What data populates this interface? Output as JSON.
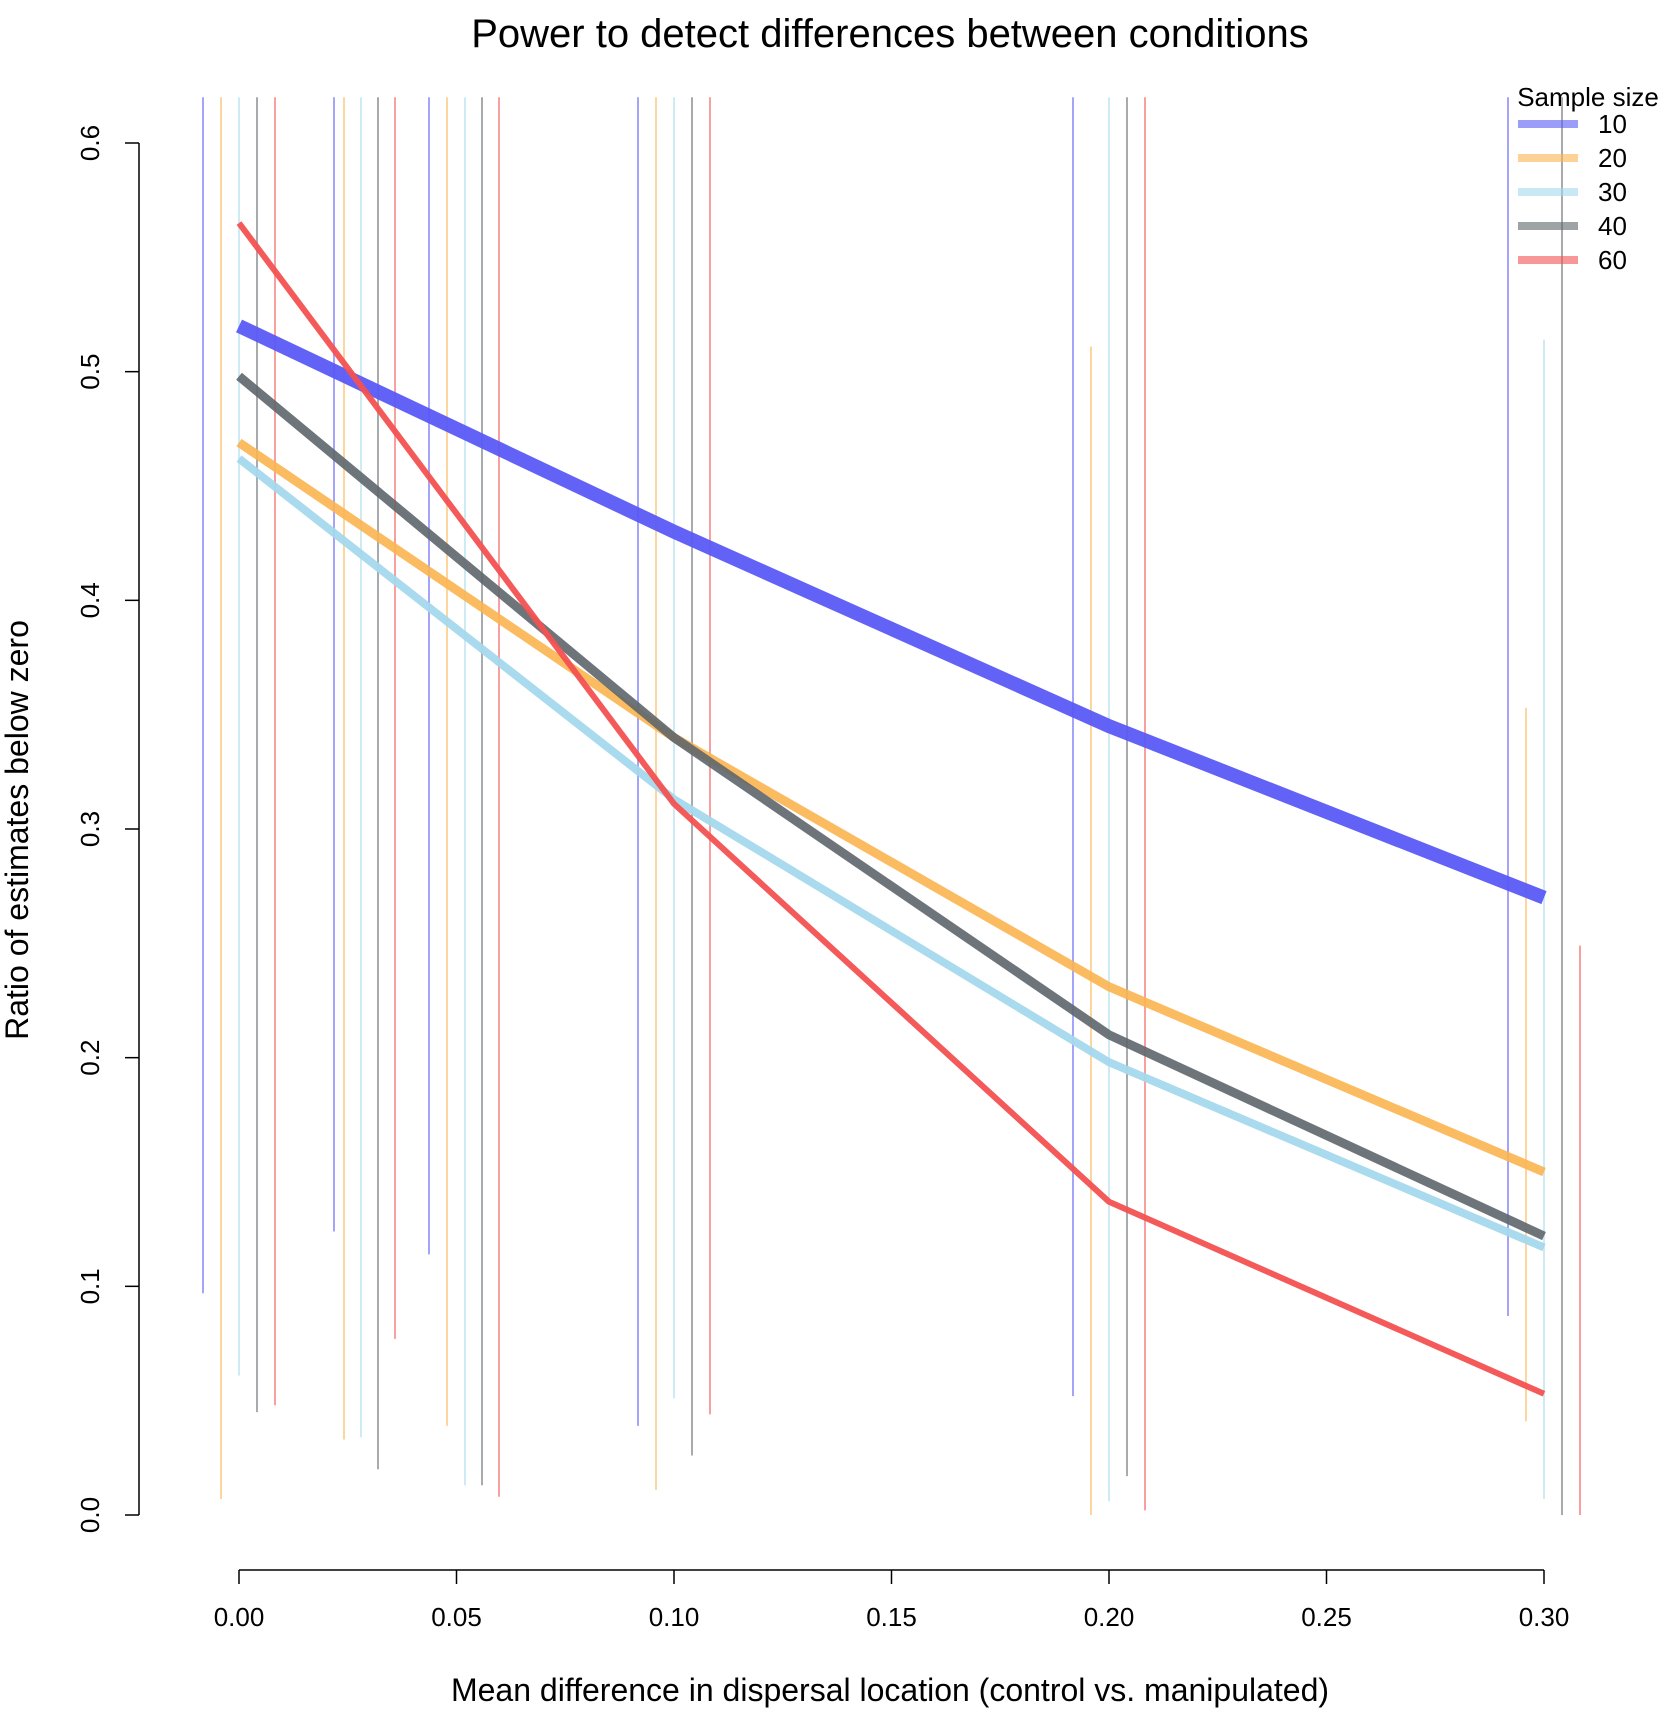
{
  "chart_data": {
    "type": "line",
    "title": "Power to detect differences between conditions",
    "xlabel": "Mean difference in dispersal location (control vs. manipulated)",
    "ylabel": "Ratio of estimates below zero",
    "xlim": [
      0.0,
      0.3
    ],
    "ylim": [
      0.0,
      0.6
    ],
    "x": [
      0.0,
      0.1,
      0.2,
      0.3
    ],
    "x_ticks": [
      "0.00",
      "0.05",
      "0.10",
      "0.15",
      "0.20",
      "0.25",
      "0.30"
    ],
    "x_tick_values": [
      0.0,
      0.05,
      0.1,
      0.15,
      0.2,
      0.25,
      0.3
    ],
    "y_ticks": [
      "0.0",
      "0.1",
      "0.2",
      "0.3",
      "0.4",
      "0.5",
      "0.6"
    ],
    "y_tick_values": [
      0.0,
      0.1,
      0.2,
      0.3,
      0.4,
      0.5,
      0.6
    ],
    "grid": false,
    "legend": {
      "title": "Sample size",
      "placement": "top-right"
    },
    "series": [
      {
        "name": "10",
        "color": "#5a5af5",
        "values": [
          0.52,
          0.43,
          0.345,
          0.27
        ],
        "error_bars": [
          {
            "x": 0.0,
            "low": 0.097,
            "high": 0.62
          },
          {
            "x": 0.1,
            "low": 0.039,
            "high": 0.62
          },
          {
            "x": 0.2,
            "low": 0.052,
            "high": 0.62
          },
          {
            "x": 0.3,
            "low": 0.087,
            "high": 0.62
          }
        ],
        "extra_bars": [
          {
            "x": 0.0,
            "low": 0.124,
            "high": 0.62
          },
          {
            "x": 0.0,
            "low": 0.114,
            "high": 0.62
          }
        ]
      },
      {
        "name": "20",
        "color": "#fbb450",
        "values": [
          0.469,
          0.34,
          0.231,
          0.15
        ],
        "error_bars": [
          {
            "x": 0.0,
            "low": 0.007,
            "high": 0.62
          },
          {
            "x": 0.1,
            "low": 0.011,
            "high": 0.62
          },
          {
            "x": 0.2,
            "low": 0.0,
            "high": 0.511
          },
          {
            "x": 0.3,
            "low": 0.041,
            "high": 0.353
          }
        ],
        "extra_bars": [
          {
            "x": 0.0,
            "low": 0.033,
            "high": 0.62
          },
          {
            "x": 0.0,
            "low": 0.039,
            "high": 0.62
          }
        ]
      },
      {
        "name": "30",
        "color": "#a4d8ec",
        "values": [
          0.462,
          0.313,
          0.198,
          0.117
        ],
        "error_bars": [
          {
            "x": 0.0,
            "low": 0.061,
            "high": 0.62
          },
          {
            "x": 0.1,
            "low": 0.051,
            "high": 0.62
          },
          {
            "x": 0.2,
            "low": 0.006,
            "high": 0.62
          },
          {
            "x": 0.3,
            "low": 0.007,
            "high": 0.514
          }
        ],
        "extra_bars": [
          {
            "x": 0.0,
            "low": 0.034,
            "high": 0.62
          },
          {
            "x": 0.0,
            "low": 0.013,
            "high": 0.62
          }
        ]
      },
      {
        "name": "40",
        "color": "#5e666b",
        "values": [
          0.498,
          0.34,
          0.21,
          0.122
        ],
        "error_bars": [
          {
            "x": 0.0,
            "low": 0.045,
            "high": 0.62
          },
          {
            "x": 0.1,
            "low": 0.026,
            "high": 0.62
          },
          {
            "x": 0.2,
            "low": 0.017,
            "high": 0.62
          },
          {
            "x": 0.3,
            "low": 0.0,
            "high": 0.62
          }
        ],
        "extra_bars": [
          {
            "x": 0.0,
            "low": 0.02,
            "high": 0.62
          },
          {
            "x": 0.0,
            "low": 0.013,
            "high": 0.62
          }
        ]
      },
      {
        "name": "60",
        "color": "#f35151",
        "values": [
          0.565,
          0.311,
          0.137,
          0.053
        ],
        "error_bars": [
          {
            "x": 0.0,
            "low": 0.048,
            "high": 0.62
          },
          {
            "x": 0.1,
            "low": 0.044,
            "high": 0.62
          },
          {
            "x": 0.2,
            "low": 0.002,
            "high": 0.62
          },
          {
            "x": 0.3,
            "low": 0.0,
            "high": 0.249
          }
        ],
        "extra_bars": [
          {
            "x": 0.0,
            "low": 0.077,
            "high": 0.62
          },
          {
            "x": 0.0,
            "low": 0.008,
            "high": 0.62
          }
        ]
      }
    ]
  }
}
